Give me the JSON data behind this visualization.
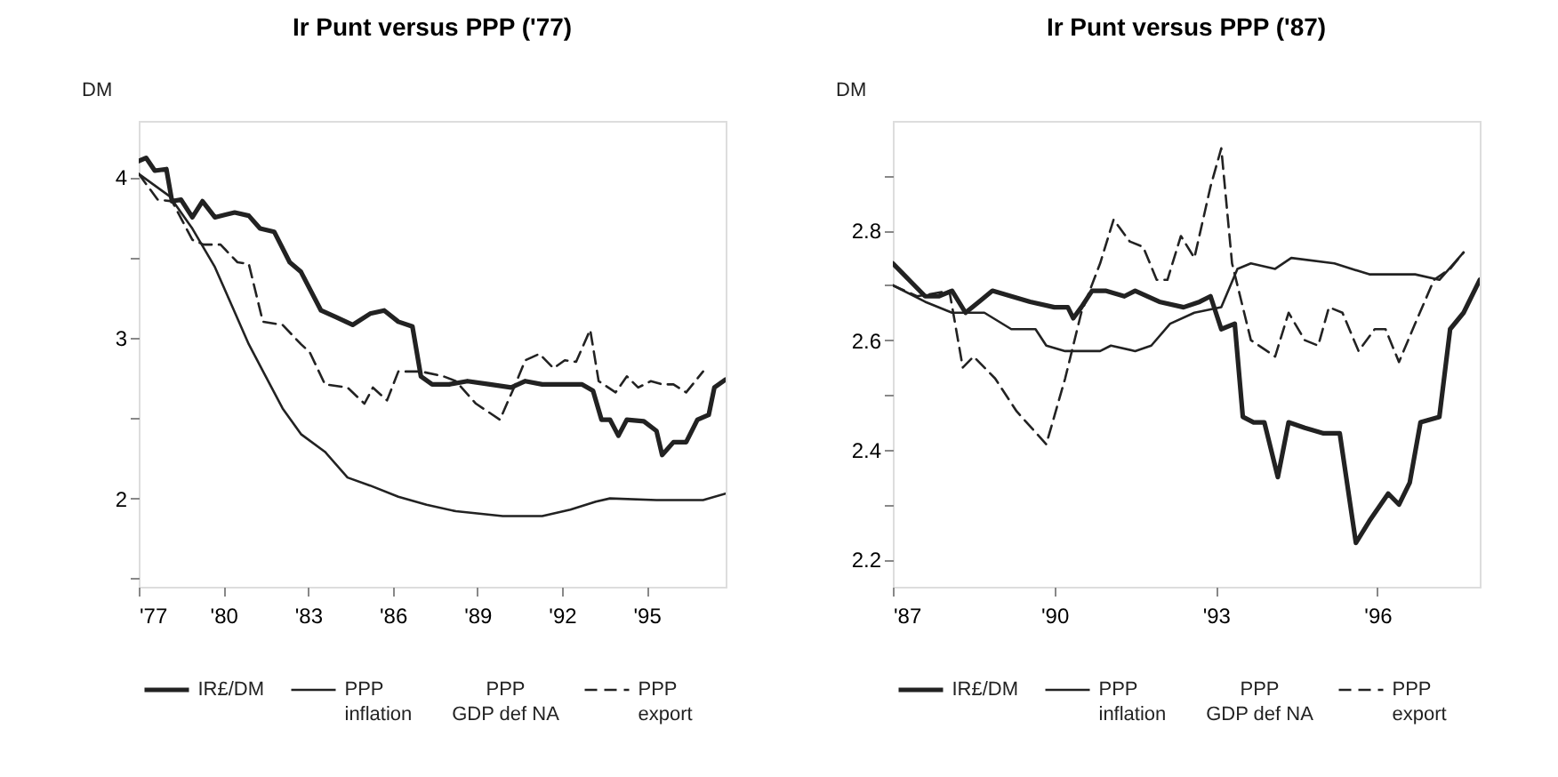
{
  "chart_data": [
    {
      "type": "line",
      "title": "Ir Punt versus PPP ('77)",
      "ylabel": "DM",
      "xlim": [
        1977,
        1997.8
      ],
      "ylim": [
        1.45,
        4.35
      ],
      "xticks": [
        {
          "value": 1977,
          "label": "'77"
        },
        {
          "value": 1980,
          "label": "'80"
        },
        {
          "value": 1983,
          "label": "'83"
        },
        {
          "value": 1986,
          "label": "'86"
        },
        {
          "value": 1989,
          "label": "'89"
        },
        {
          "value": 1992,
          "label": "'92"
        },
        {
          "value": 1995,
          "label": "'95"
        }
      ],
      "yticks": [
        {
          "value": 1.5,
          "label": null
        },
        2,
        {
          "value": 2.5,
          "label": null
        },
        3,
        {
          "value": 3.5,
          "label": null
        },
        4
      ],
      "grid": false,
      "legend": "bottom",
      "annotations": [
        "PPP GDP def NA"
      ],
      "series": [
        {
          "name": "IR£/DM",
          "color": "#222222",
          "line_style": "solid",
          "x": [
            1977,
            1977.26,
            1977.57,
            1977.98,
            1978.18,
            1978.5,
            1978.9,
            1979.26,
            1979.7,
            1980.4,
            1980.9,
            1981.3,
            1981.8,
            1982.35,
            1982.75,
            1983.46,
            1983.97,
            1984.58,
            1985.2,
            1985.7,
            1986.2,
            1986.7,
            1987.0,
            1987.4,
            1988.0,
            1988.65,
            1989.45,
            1990.2,
            1990.7,
            1991.3,
            1991.9,
            1992.7,
            1993.1,
            1993.4,
            1993.7,
            1994.0,
            1994.3,
            1994.9,
            1995.35,
            1995.55,
            1995.95,
            1996.4,
            1996.8,
            1997.2,
            1997.4,
            1997.8
          ],
          "values": [
            4.1,
            4.12,
            4.04,
            4.05,
            3.85,
            3.86,
            3.75,
            3.85,
            3.75,
            3.78,
            3.76,
            3.68,
            3.66,
            3.47,
            3.41,
            3.17,
            3.13,
            3.08,
            3.15,
            3.17,
            3.1,
            3.07,
            2.76,
            2.71,
            2.71,
            2.73,
            2.71,
            2.69,
            2.73,
            2.71,
            2.71,
            2.71,
            2.67,
            2.49,
            2.49,
            2.39,
            2.49,
            2.48,
            2.42,
            2.27,
            2.35,
            2.35,
            2.49,
            2.52,
            2.69,
            2.74
          ]
        },
        {
          "name": "PPP inflation",
          "color": "#222222",
          "line_style": "solid",
          "x": [
            1977,
            1978.1,
            1978.9,
            1979.7,
            1980.3,
            1980.9,
            1981.5,
            1982.1,
            1982.75,
            1983.6,
            1984.4,
            1985.2,
            1986.2,
            1987.2,
            1988.24,
            1989.9,
            1991.3,
            1992.3,
            1993.2,
            1993.7,
            1995.35,
            1997.0,
            1997.8
          ],
          "values": [
            4.02,
            3.88,
            3.68,
            3.44,
            3.2,
            2.96,
            2.76,
            2.56,
            2.4,
            2.29,
            2.13,
            2.08,
            2.01,
            1.96,
            1.92,
            1.89,
            1.89,
            1.93,
            1.98,
            2.0,
            1.99,
            1.99,
            2.03
          ]
        },
        {
          "name": "PPP export",
          "color": "#222222",
          "line_style": "dashed",
          "x": [
            1977,
            1977.67,
            1978.18,
            1978.9,
            1979.3,
            1979.9,
            1980.5,
            1980.9,
            1981.4,
            1982.1,
            1982.75,
            1983.06,
            1983.6,
            1984.4,
            1985.0,
            1985.3,
            1985.8,
            1986.2,
            1987.0,
            1987.8,
            1988.24,
            1988.95,
            1989.8,
            1990.3,
            1990.7,
            1991.2,
            1991.7,
            1992.1,
            1992.5,
            1993.0,
            1993.3,
            1993.9,
            1994.3,
            1994.7,
            1995.15,
            1995.55,
            1995.95,
            1996.4,
            1997.0
          ],
          "values": [
            4.02,
            3.86,
            3.85,
            3.61,
            3.58,
            3.58,
            3.47,
            3.46,
            3.1,
            3.08,
            2.96,
            2.91,
            2.71,
            2.69,
            2.59,
            2.69,
            2.61,
            2.79,
            2.79,
            2.76,
            2.73,
            2.59,
            2.49,
            2.69,
            2.86,
            2.9,
            2.81,
            2.86,
            2.85,
            3.05,
            2.73,
            2.66,
            2.76,
            2.69,
            2.73,
            2.71,
            2.71,
            2.66,
            2.79
          ]
        }
      ]
    },
    {
      "type": "line",
      "title": "Ir Punt versus PPP ('87)",
      "ylabel": "DM",
      "xlim": [
        1987,
        1997.9
      ],
      "ylim": [
        2.15,
        3.0
      ],
      "xticks": [
        {
          "value": 1987,
          "label": "'87"
        },
        {
          "value": 1990,
          "label": "'90"
        },
        {
          "value": 1993,
          "label": "'93"
        },
        {
          "value": 1996,
          "label": "'96"
        }
      ],
      "yticks": [
        2.2,
        {
          "value": 2.3,
          "label": null
        },
        2.4,
        {
          "value": 2.5,
          "label": null
        },
        2.6,
        {
          "value": 2.7,
          "label": null
        },
        2.8,
        {
          "value": 2.9,
          "label": null
        }
      ],
      "grid": false,
      "legend": "bottom",
      "annotations": [
        "PPP GDP def NA"
      ],
      "series": [
        {
          "name": "IR£/DM",
          "color": "#222222",
          "line_style": "solid",
          "x": [
            1987.0,
            1987.3,
            1987.6,
            1987.85,
            1988.1,
            1988.35,
            1988.6,
            1988.85,
            1989.2,
            1989.55,
            1990.0,
            1990.25,
            1990.35,
            1990.5,
            1990.7,
            1990.95,
            1991.3,
            1991.5,
            1991.95,
            1992.4,
            1992.7,
            1992.9,
            1993.1,
            1993.35,
            1993.5,
            1993.7,
            1993.9,
            1994.15,
            1994.35,
            1994.65,
            1995.0,
            1995.3,
            1995.6,
            1995.85,
            1996.2,
            1996.4,
            1996.6,
            1996.8,
            1997.15,
            1997.35,
            1997.6,
            1997.9
          ],
          "values": [
            2.74,
            2.71,
            2.68,
            2.68,
            2.69,
            2.65,
            2.67,
            2.69,
            2.68,
            2.67,
            2.66,
            2.66,
            2.64,
            2.66,
            2.69,
            2.69,
            2.68,
            2.69,
            2.67,
            2.66,
            2.67,
            2.68,
            2.62,
            2.63,
            2.46,
            2.45,
            2.45,
            2.35,
            2.45,
            2.44,
            2.43,
            2.43,
            2.23,
            2.27,
            2.32,
            2.3,
            2.34,
            2.45,
            2.46,
            2.62,
            2.65,
            2.71
          ]
        },
        {
          "name": "PPP inflation",
          "color": "#222222",
          "line_style": "solid",
          "x": [
            1987.0,
            1987.6,
            1988.1,
            1988.7,
            1989.2,
            1989.65,
            1989.85,
            1990.2,
            1990.6,
            1990.85,
            1991.05,
            1991.5,
            1991.8,
            1992.15,
            1992.6,
            1993.1,
            1993.4,
            1993.65,
            1994.1,
            1994.4,
            1995.2,
            1995.85,
            1996.3,
            1996.7,
            1997.15,
            1997.6
          ],
          "values": [
            2.7,
            2.67,
            2.65,
            2.65,
            2.62,
            2.62,
            2.59,
            2.58,
            2.58,
            2.58,
            2.59,
            2.58,
            2.59,
            2.63,
            2.65,
            2.66,
            2.73,
            2.74,
            2.73,
            2.75,
            2.74,
            2.72,
            2.72,
            2.72,
            2.71,
            2.76
          ]
        },
        {
          "name": "PPP export",
          "color": "#222222",
          "line_style": "dashed",
          "x": [
            1987.0,
            1987.45,
            1988.05,
            1988.3,
            1988.5,
            1988.9,
            1989.3,
            1989.85,
            1990.2,
            1990.5,
            1990.85,
            1991.1,
            1991.4,
            1991.65,
            1991.9,
            1992.1,
            1992.35,
            1992.6,
            1992.9,
            1993.1,
            1993.3,
            1993.65,
            1994.1,
            1994.35,
            1994.65,
            1994.9,
            1995.1,
            1995.35,
            1995.65,
            1995.95,
            1996.15,
            1996.4,
            1996.7,
            1997.05,
            1997.35,
            1997.6
          ],
          "values": [
            2.7,
            2.68,
            2.69,
            2.55,
            2.57,
            2.53,
            2.47,
            2.41,
            2.53,
            2.65,
            2.74,
            2.82,
            2.78,
            2.77,
            2.71,
            2.71,
            2.79,
            2.75,
            2.88,
            2.95,
            2.74,
            2.6,
            2.57,
            2.65,
            2.6,
            2.59,
            2.66,
            2.65,
            2.58,
            2.62,
            2.62,
            2.56,
            2.63,
            2.71,
            2.73,
            2.76
          ]
        }
      ]
    }
  ]
}
